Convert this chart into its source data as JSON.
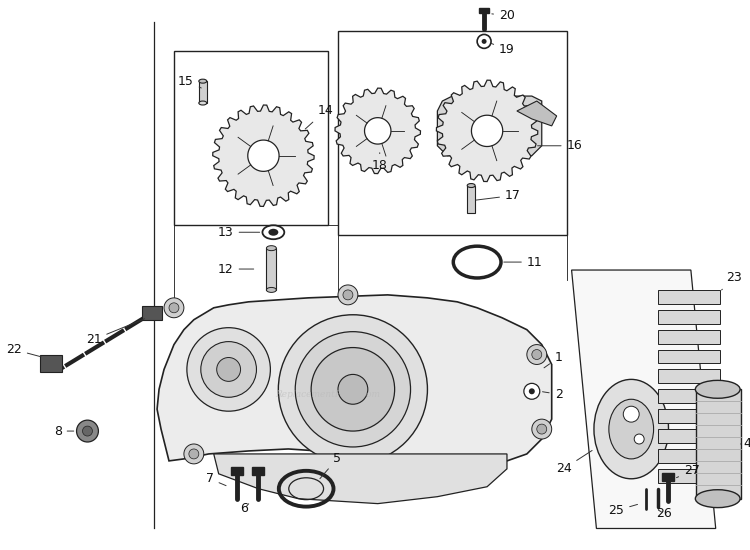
{
  "bg_color": "#ffffff",
  "line_color": "#222222",
  "watermark": "ReplacementParts.com",
  "fig_w": 7.5,
  "fig_h": 5.5,
  "dpi": 100
}
